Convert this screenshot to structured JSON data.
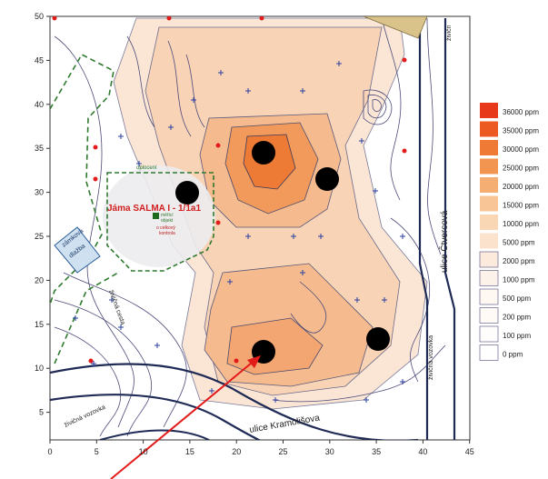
{
  "map": {
    "x_ticks": [
      "0",
      "5",
      "10",
      "15",
      "20",
      "25",
      "30",
      "35",
      "40",
      "45"
    ],
    "y_ticks": [
      "50",
      "45",
      "40",
      "35",
      "30",
      "25",
      "20",
      "15",
      "10",
      "5"
    ],
    "streets": {
      "cvercova": "ulice Čtvercová",
      "kramolisova": "ulice Kramolišova",
      "zivicna_right": "živičná vozovka",
      "zivicna_bottom": "živičná vozovka",
      "zivicna_top": "živičn",
      "zivicna_cesta": "živičná cesta"
    },
    "zamkova": [
      "zámková",
      "dlažba"
    ],
    "well_label": "Jáma SALMA I - 1/1a1",
    "oploceni": "oplocení",
    "sondy": [
      "měřicí",
      "objekt"
    ],
    "kontrola": [
      "o celkový",
      "kontrola"
    ]
  },
  "legend": {
    "items": [
      {
        "label": "36000 ppm",
        "color": "#e8381a"
      },
      {
        "label": "35000 ppm",
        "color": "#ec5a22"
      },
      {
        "label": "30000 ppm",
        "color": "#ef7a35"
      },
      {
        "label": "25000 ppm",
        "color": "#f19550"
      },
      {
        "label": "20000 ppm",
        "color": "#f4ad72"
      },
      {
        "label": "15000 ppm",
        "color": "#f7c596"
      },
      {
        "label": "10000 ppm",
        "color": "#f9d6b4"
      },
      {
        "label": "5000 ppm",
        "color": "#fbe2cc"
      },
      {
        "label": "2000 ppm",
        "color": "#fcebdd"
      },
      {
        "label": "1000 ppm",
        "color": "#fdf2ea"
      },
      {
        "label": "500 ppm",
        "color": "#fef7f2"
      },
      {
        "label": "200 ppm",
        "color": "#fffaf6"
      },
      {
        "label": "100 ppm",
        "color": "#fffdfb"
      },
      {
        "label": "0 ppm",
        "color": "#ffffff"
      }
    ]
  }
}
